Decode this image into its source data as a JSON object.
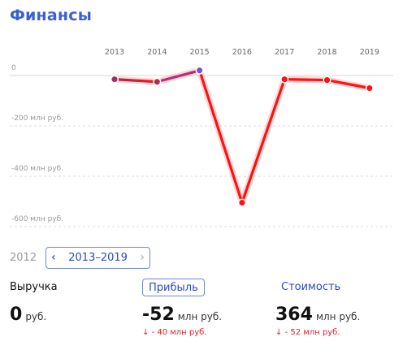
{
  "title": "Финансы",
  "chart_data": {
    "type": "line",
    "x": [
      "2013",
      "2014",
      "2015",
      "2016",
      "2017",
      "2018",
      "2019"
    ],
    "values": [
      -15,
      -25,
      20,
      -505,
      -15,
      -18,
      -50
    ],
    "yticks": [
      {
        "value": 0,
        "label": "0"
      },
      {
        "value": -200,
        "label": "-200 млн руб."
      },
      {
        "value": -400,
        "label": "-400 млн руб."
      },
      {
        "value": -600,
        "label": "-600 млн руб."
      }
    ],
    "ylim": [
      -600,
      20
    ],
    "colors": {
      "line": "#ff1111",
      "glow": "#ff8a8a",
      "start": "#9b2f5e",
      "highlight": "#7b4fc7"
    },
    "grid": true
  },
  "period": {
    "prev_year": "2012",
    "range_label": "2013–2019",
    "prev_arrow": "‹",
    "next_arrow": "›"
  },
  "metrics": {
    "revenue": {
      "label": "Выручка",
      "value": "0",
      "unit": "руб."
    },
    "profit": {
      "label": "Прибыль",
      "value": "-52",
      "unit": "млн руб.",
      "delta": "↓ - 40 млн руб."
    },
    "cost": {
      "label": "Стоимость",
      "value": "364",
      "unit": "млн руб.",
      "delta": "↓ - 52 млн руб."
    }
  }
}
